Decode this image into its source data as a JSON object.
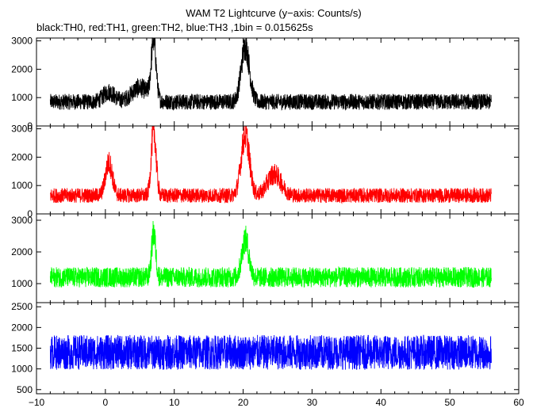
{
  "chart_data": {
    "type": "line",
    "title": "WAM T2 Lightcurve (y−axis: Counts/s)",
    "subtitle": "black:TH0, red:TH1, green:TH2, blue:TH3 ,1bin = 0.015625s",
    "xlabel": "",
    "xlim": [
      -10,
      60
    ],
    "x_range": [
      -8,
      56
    ],
    "x_ticks": [
      -10,
      0,
      10,
      20,
      30,
      40,
      50,
      60
    ],
    "x_tick_labels": [
      "−10",
      "0",
      "10",
      "20",
      "30",
      "40",
      "50",
      "60"
    ],
    "grid": false,
    "panels": [
      {
        "series": "TH0",
        "color": "#000000",
        "ylim": [
          0,
          3100
        ],
        "y_ticks": [
          0,
          1000,
          2000,
          3000
        ],
        "y_tick_labels": [
          "0",
          "1000",
          "2000",
          "3000"
        ],
        "baseline": 850,
        "noise": 280,
        "peaks": [
          {
            "t": 7.0,
            "peak": 2950,
            "width": 0.35
          },
          {
            "t": 20.3,
            "peak": 2800,
            "width": 0.6
          },
          {
            "t": 5.0,
            "peak": 1350,
            "width": 1.2
          },
          {
            "t": 0.5,
            "peak": 1200,
            "width": 0.8
          }
        ]
      },
      {
        "series": "TH1",
        "color": "#ff0000",
        "ylim": [
          0,
          3100
        ],
        "y_ticks": [
          0,
          1000,
          2000,
          3000
        ],
        "y_tick_labels": [
          "0",
          "1000",
          "2000",
          "3000"
        ],
        "baseline": 650,
        "noise": 260,
        "peaks": [
          {
            "t": 7.0,
            "peak": 2950,
            "width": 0.35
          },
          {
            "t": 20.3,
            "peak": 2800,
            "width": 0.6
          },
          {
            "t": 0.5,
            "peak": 1800,
            "width": 0.5
          },
          {
            "t": 24.5,
            "peak": 1400,
            "width": 1.0
          }
        ]
      },
      {
        "series": "TH2",
        "color": "#00ff00",
        "ylim": [
          400,
          3200
        ],
        "y_ticks": [
          1000,
          2000,
          3000
        ],
        "y_tick_labels": [
          "1000",
          "2000",
          "3000"
        ],
        "baseline": 1200,
        "noise": 320,
        "peaks": [
          {
            "t": 7.0,
            "peak": 2600,
            "width": 0.3
          },
          {
            "t": 20.3,
            "peak": 2400,
            "width": 0.5
          }
        ]
      },
      {
        "series": "TH3",
        "color": "#0000ff",
        "ylim": [
          400,
          2600
        ],
        "y_ticks": [
          500,
          1000,
          1500,
          2000,
          2500
        ],
        "y_tick_labels": [
          "500",
          "1000",
          "1500",
          "2000",
          "2500"
        ],
        "baseline": 1400,
        "noise": 420,
        "peaks": []
      }
    ]
  }
}
